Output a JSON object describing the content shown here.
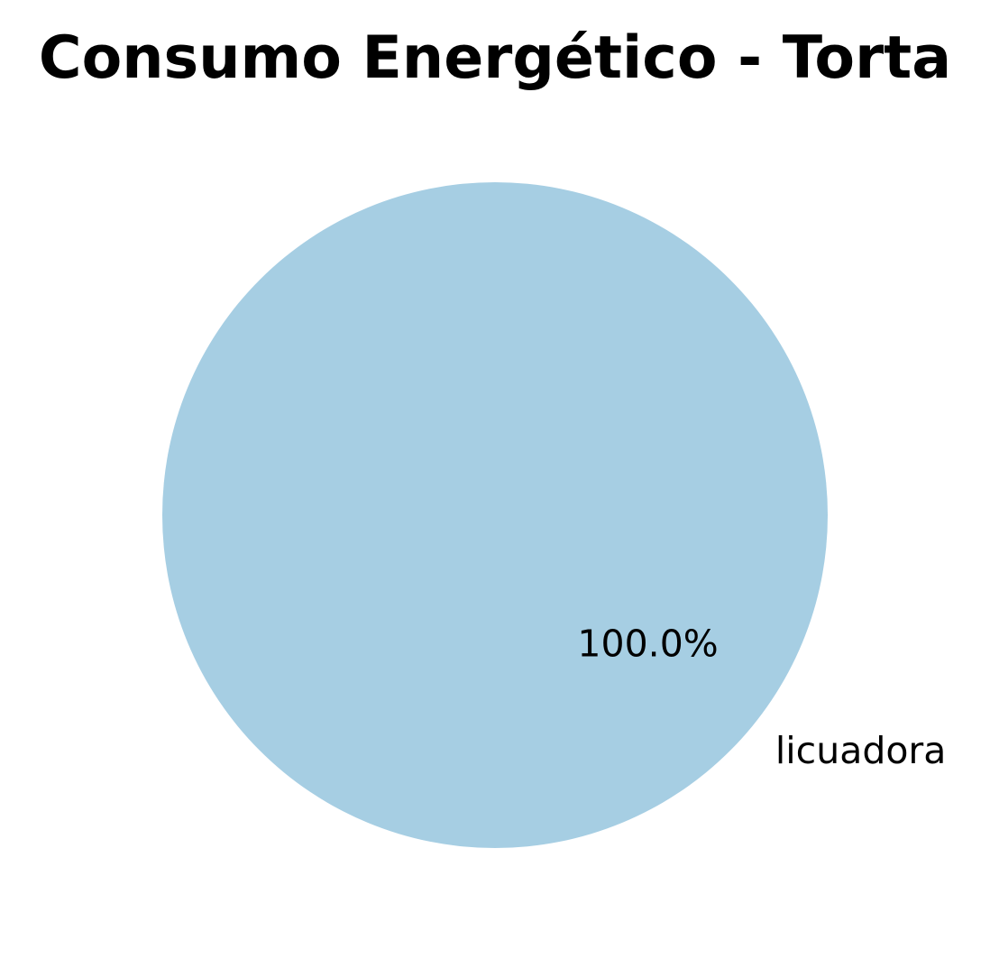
{
  "chart_data": {
    "type": "pie",
    "title": "Consumo Energético - Torta",
    "slices": [
      {
        "label": "licuadora",
        "value": 100.0,
        "percent_label": "100.0%",
        "color": "#a6cee3"
      }
    ],
    "legend": "none",
    "grid": false
  }
}
